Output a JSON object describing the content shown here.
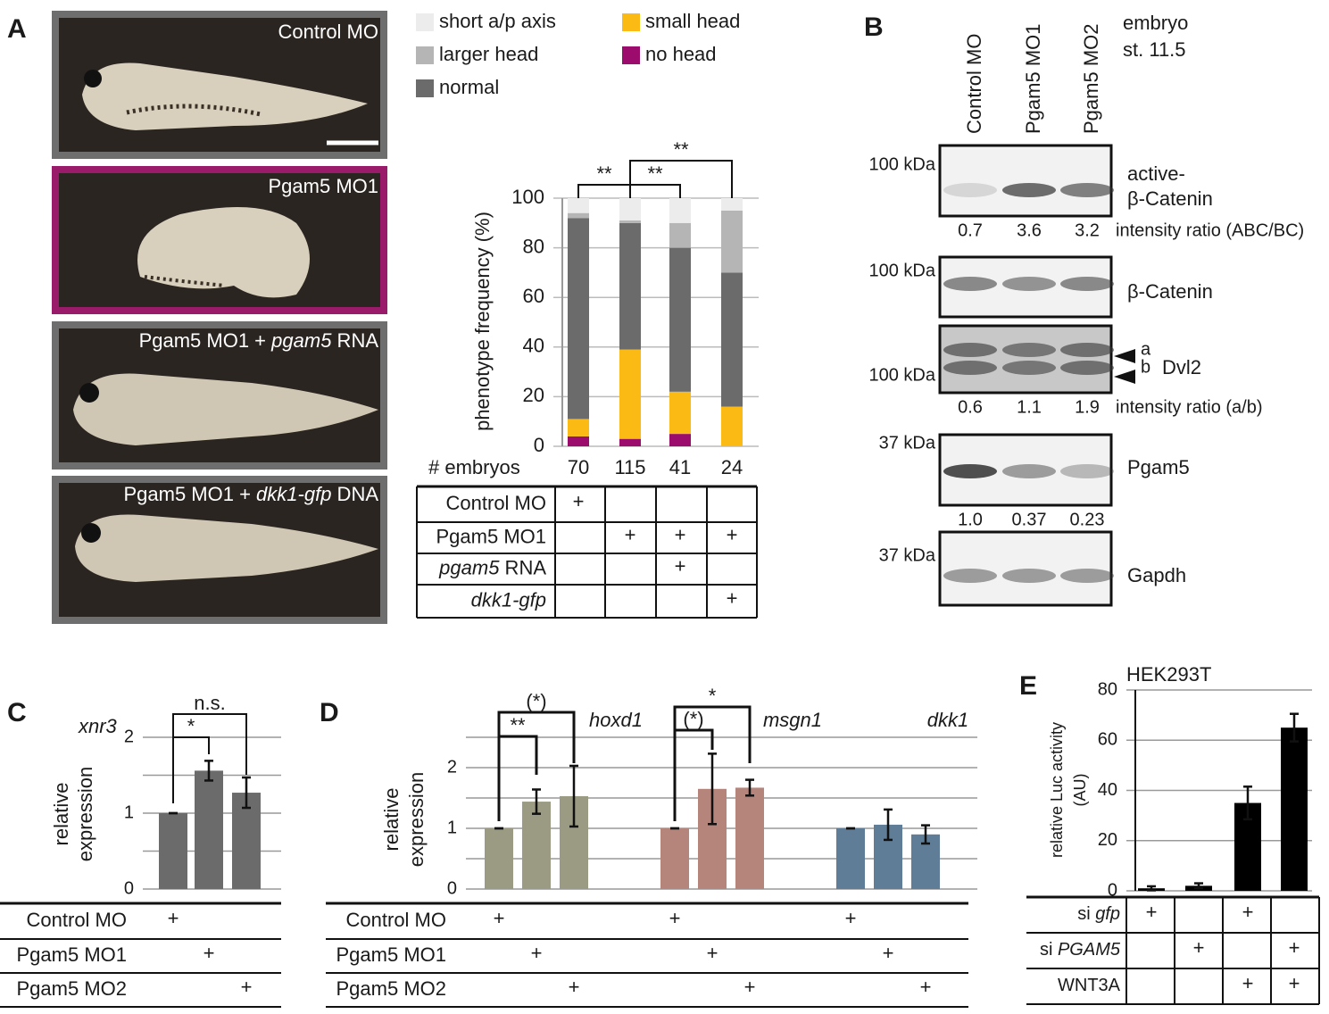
{
  "panel_a_images": [
    [
      "Control MO"
    ],
    [
      "Pgam5 MO1"
    ],
    [
      "Pgam5 MO1 + ",
      {
        "italic": "pgam5"
      },
      " RNA"
    ],
    [
      "Pgam5 MO1 + ",
      {
        "italic": "dkk1-gfp"
      },
      " DNA"
    ]
  ],
  "panel_b": {
    "label": "B",
    "lanes": [
      "Control MO",
      "Pgam5 MO1",
      "Pgam5 MO2"
    ],
    "stage": [
      "embryo",
      "st. 11.5"
    ],
    "blots": [
      {
        "size": "100 kDa",
        "name": [
          "active-",
          "β-Catenin"
        ],
        "ratios": [
          "0.7",
          "3.6",
          "3.2"
        ],
        "ratio_label": "intensity ratio (ABC/BC)"
      },
      {
        "size": "100 kDa",
        "name": [
          "β-Catenin"
        ]
      },
      {
        "size": "100 kDa",
        "name": [
          "Dvl2"
        ],
        "bands": [
          "a",
          "b"
        ],
        "ratios": [
          "0.6",
          "1.1",
          "1.9"
        ],
        "ratio_label": "intensity ratio (a/b)"
      },
      {
        "size": "37 kDa",
        "name": [
          "Pgam5"
        ],
        "ratios": [
          "1.0",
          "0.37",
          "0.23"
        ]
      },
      {
        "size": "37 kDa",
        "name": [
          "Gapdh"
        ]
      }
    ]
  },
  "chart_data": [
    {
      "panel": "A",
      "type": "stacked_bar",
      "ylabel": "phenotype frequency (%)",
      "count_label": "# embryos",
      "categories": [
        "70",
        "115",
        "41",
        "24"
      ],
      "series": [
        {
          "name": "no head",
          "color": "#9b0c6c",
          "values": [
            4,
            3,
            5,
            0
          ]
        },
        {
          "name": "small head",
          "color": "#fcbb14",
          "values": [
            7,
            36,
            17,
            16
          ]
        },
        {
          "name": "normal",
          "color": "#6b6b6b",
          "values": [
            81,
            51,
            58,
            54
          ]
        },
        {
          "name": "larger head",
          "color": "#b5b5b5",
          "values": [
            2,
            1,
            10,
            25
          ]
        },
        {
          "name": "short a/p axis",
          "color": "#ececec",
          "values": [
            6,
            9,
            10,
            5
          ]
        }
      ],
      "ylim": [
        0,
        100
      ],
      "yticks": [
        0,
        20,
        40,
        60,
        80,
        100
      ],
      "grid": true,
      "significance": [
        "**",
        "**",
        "**"
      ],
      "table": {
        "rows": [
          {
            "label": [
              "Control MO"
            ],
            "cells": [
              "+",
              null,
              null,
              null
            ]
          },
          {
            "label": [
              "Pgam5 MO1"
            ],
            "cells": [
              null,
              "+",
              "+",
              "+"
            ]
          },
          {
            "label": [
              {
                "italic": "pgam5"
              },
              " RNA"
            ],
            "cells": [
              null,
              null,
              "+",
              null
            ]
          },
          {
            "label": [
              {
                "italic": "dkk1-gfp"
              }
            ],
            "cells": [
              null,
              null,
              null,
              "+"
            ]
          }
        ]
      }
    },
    {
      "panel": "C",
      "type": "bar",
      "gene": "xnr3",
      "ylabel": [
        "relative",
        "expression"
      ],
      "values": [
        1.0,
        1.56,
        1.27
      ],
      "errors": [
        0,
        0.13,
        0.2
      ],
      "color": "#6b6b6b",
      "ylim": [
        0,
        2
      ],
      "yticks": [
        0,
        1,
        2
      ],
      "minor_yticks": [
        0.5,
        1.5
      ],
      "grid": true,
      "significance": [
        "*",
        "n.s."
      ],
      "table": {
        "rows": [
          {
            "label": [
              "Control MO"
            ],
            "cells": [
              "+",
              null,
              null
            ]
          },
          {
            "label": [
              "Pgam5 MO1"
            ],
            "cells": [
              null,
              "+",
              null
            ]
          },
          {
            "label": [
              "Pgam5 MO2"
            ],
            "cells": [
              null,
              null,
              "+"
            ]
          }
        ]
      }
    },
    {
      "panel": "D",
      "type": "grouped_bar",
      "ylabel": [
        "relative",
        "expression"
      ],
      "series": [
        {
          "name": "hoxd1",
          "color": "#9b9a83",
          "values": [
            1.0,
            1.44,
            1.53
          ],
          "errors": [
            0,
            0.2,
            0.5
          ],
          "significance": [
            "**",
            "(*)"
          ]
        },
        {
          "name": "msgn1",
          "color": "#b5847a",
          "values": [
            1.0,
            1.65,
            1.67
          ],
          "errors": [
            0,
            0.58,
            0.13
          ],
          "significance": [
            "(*)",
            "*"
          ]
        },
        {
          "name": "dkk1",
          "color": "#5f7d96",
          "values": [
            1.0,
            1.06,
            0.9
          ],
          "errors": [
            0,
            0.25,
            0.15
          ]
        }
      ],
      "ylim": [
        0,
        2.5
      ],
      "yticks": [
        0,
        1,
        2
      ],
      "minor_yticks": [
        0.5,
        1.5,
        2.5
      ],
      "grid": true,
      "table": {
        "rows": [
          {
            "label": [
              "Control MO"
            ],
            "cells": [
              "+",
              null,
              null,
              "+",
              null,
              null,
              "+",
              null,
              null
            ]
          },
          {
            "label": [
              "Pgam5 MO1"
            ],
            "cells": [
              null,
              "+",
              null,
              null,
              "+",
              null,
              null,
              "+",
              null
            ]
          },
          {
            "label": [
              "Pgam5 MO2"
            ],
            "cells": [
              null,
              null,
              "+",
              null,
              null,
              "+",
              null,
              null,
              "+"
            ]
          }
        ]
      }
    },
    {
      "panel": "E",
      "type": "bar",
      "title": "HEK293T",
      "ylabel": [
        "relative Luc activity",
        "(AU)"
      ],
      "values": [
        1,
        2,
        35,
        65
      ],
      "errors": [
        0.8,
        1,
        6.5,
        5.5
      ],
      "color": "#000000",
      "ylim": [
        0,
        80
      ],
      "yticks": [
        0,
        20,
        40,
        60,
        80
      ],
      "grid": true,
      "table": {
        "rows": [
          {
            "label": [
              "si ",
              {
                "italic": "gfp"
              }
            ],
            "cells": [
              "+",
              null,
              "+",
              null
            ]
          },
          {
            "label": [
              "si ",
              {
                "italic": "PGAM5"
              }
            ],
            "cells": [
              null,
              "+",
              null,
              "+"
            ]
          },
          {
            "label": [
              "WNT3A"
            ],
            "cells": [
              null,
              null,
              "+",
              "+"
            ]
          }
        ]
      }
    }
  ]
}
